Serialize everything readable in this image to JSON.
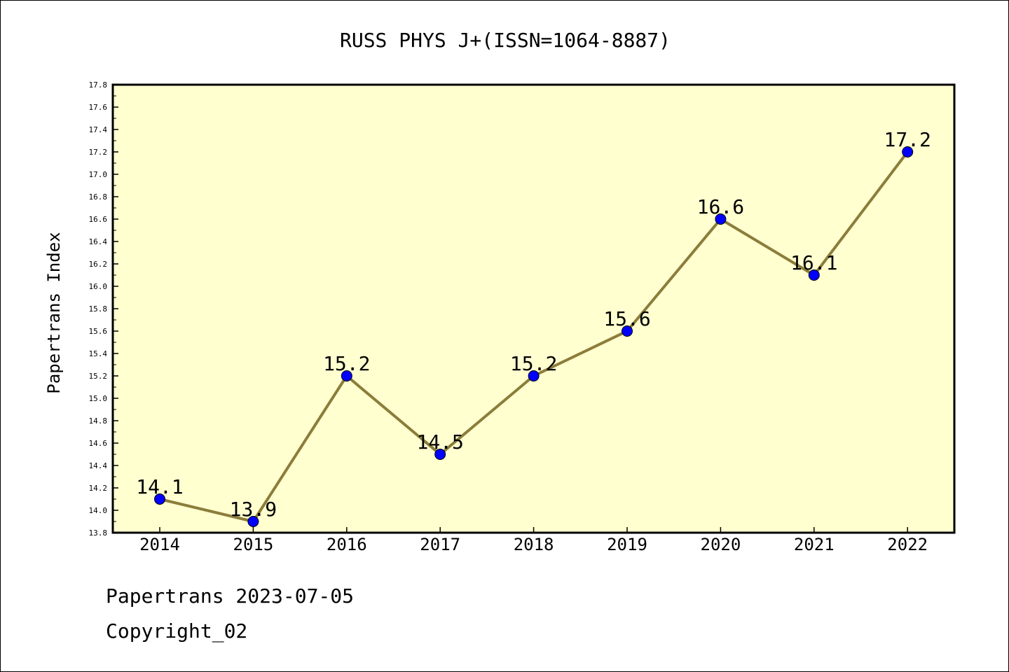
{
  "chart_data": {
    "type": "line",
    "title": "RUSS PHYS J+(ISSN=1064-8887)",
    "xlabel": "",
    "ylabel": "Papertrans Index",
    "categories": [
      "2014",
      "2015",
      "2016",
      "2017",
      "2018",
      "2019",
      "2020",
      "2021",
      "2022"
    ],
    "values": [
      14.1,
      13.9,
      15.2,
      14.5,
      15.2,
      15.6,
      16.6,
      16.1,
      17.2
    ],
    "data_labels": [
      "14.1",
      "13.9",
      "15.2",
      "14.5",
      "15.2",
      "15.6",
      "16.6",
      "16.1",
      "17.2"
    ],
    "ylim": [
      13.8,
      17.8
    ],
    "yticks": [
      "13.8",
      "14.0",
      "14.2",
      "14.4",
      "14.6",
      "14.8",
      "15.0",
      "15.2",
      "15.4",
      "15.6",
      "15.8",
      "16.0",
      "16.2",
      "16.4",
      "16.6",
      "16.8",
      "17.0",
      "17.2",
      "17.4",
      "17.6",
      "17.8"
    ],
    "grid": false,
    "legend": "none",
    "colors": {
      "line": "#8B7D3A",
      "marker": "#0000FF",
      "plot_background": "#FFFFD0",
      "axis": "#000000"
    }
  },
  "footer": {
    "line1": "Papertrans 2023-07-05",
    "line2": "Copyright_02"
  }
}
